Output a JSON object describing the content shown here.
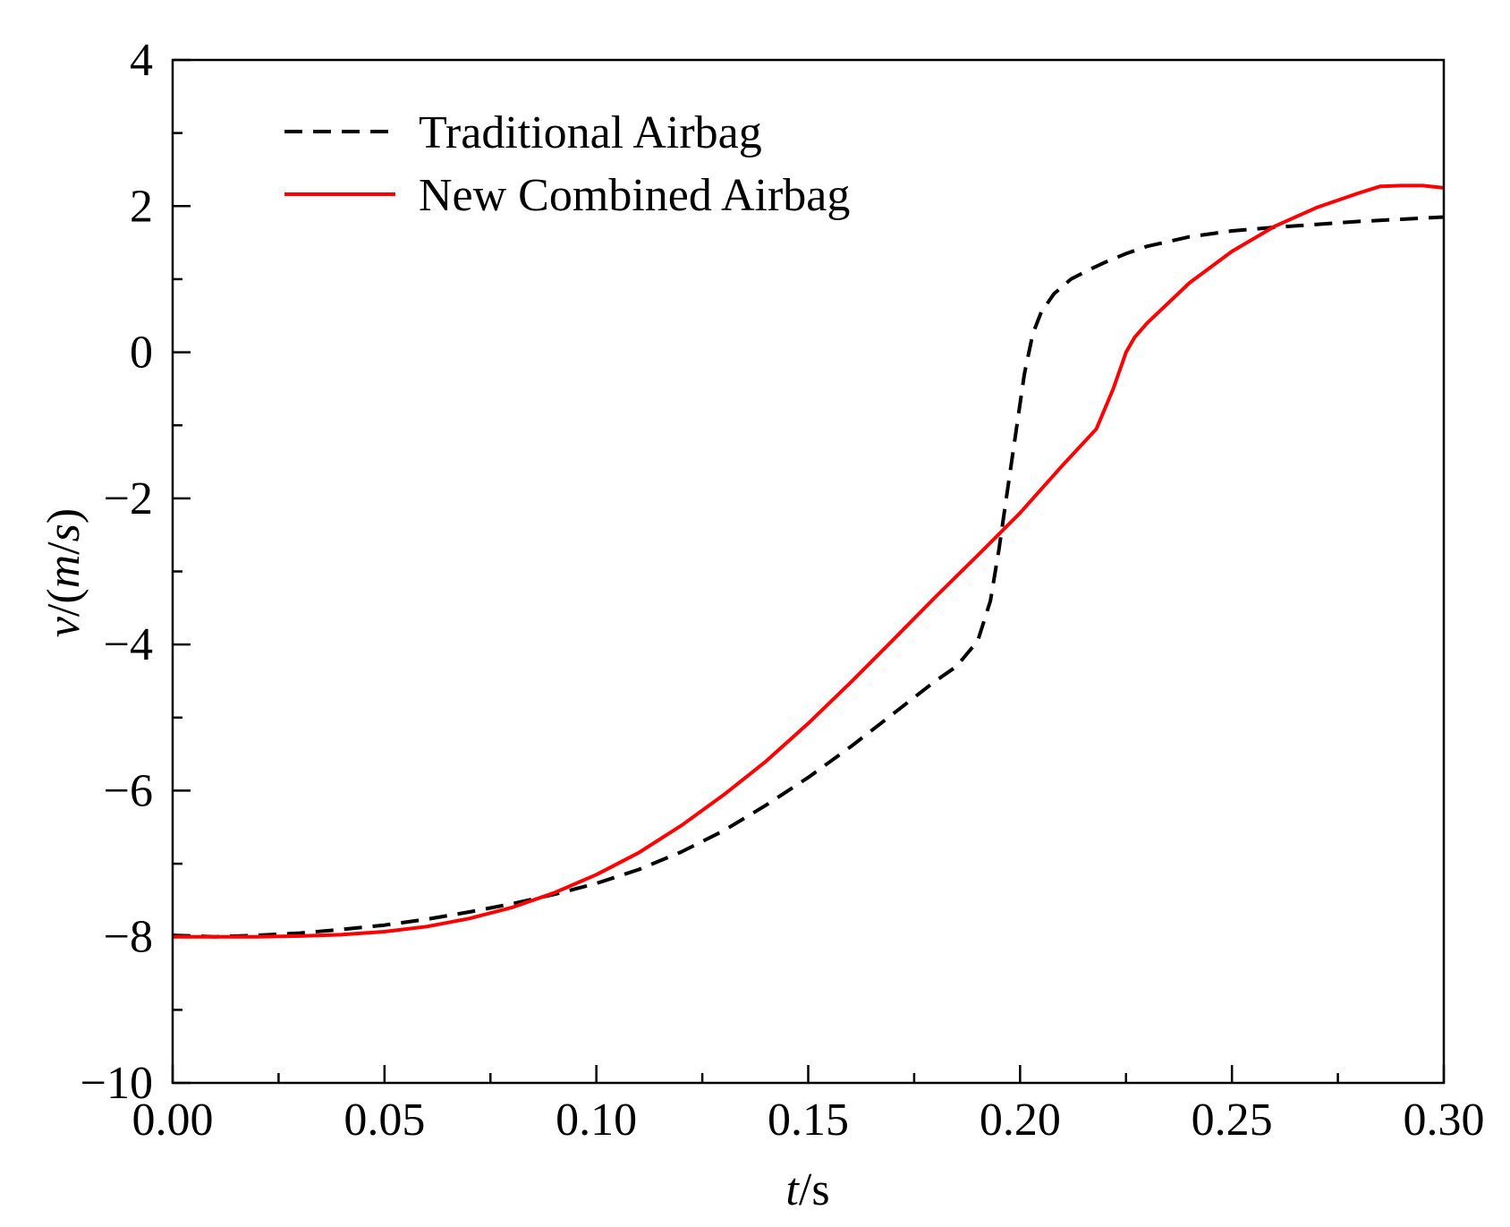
{
  "chart_data": {
    "type": "line",
    "title": "",
    "xlabel_italic": "t",
    "xlabel_rest": "/s",
    "ylabel_italic_v": "v",
    "ylabel_mid": "/(",
    "ylabel_italic_m": "m",
    "ylabel_slash": "/",
    "ylabel_italic_s": "s",
    "ylabel_close": ")",
    "xlim": [
      0.0,
      0.3
    ],
    "ylim": [
      -10,
      4
    ],
    "x_ticks": [
      0.0,
      0.05,
      0.1,
      0.15,
      0.2,
      0.25,
      0.3
    ],
    "x_tick_labels": [
      "0.00",
      "0.05",
      "0.10",
      "0.15",
      "0.20",
      "0.25",
      "0.30"
    ],
    "x_minor_step": 0.025,
    "y_ticks": [
      4,
      2,
      0,
      -2,
      -4,
      -6,
      -8,
      -10
    ],
    "y_tick_labels": [
      "4",
      "2",
      "0",
      "−2",
      "−4",
      "−6",
      "−8",
      "−10"
    ],
    "y_minor_step": 1,
    "grid": false,
    "legend_position": "top-left",
    "series": [
      {
        "name": "Traditional Airbag",
        "color": "#000000",
        "style": "dashed",
        "x": [
          0.0,
          0.01,
          0.02,
          0.03,
          0.04,
          0.05,
          0.06,
          0.07,
          0.08,
          0.09,
          0.1,
          0.11,
          0.12,
          0.13,
          0.14,
          0.15,
          0.16,
          0.17,
          0.18,
          0.185,
          0.19,
          0.193,
          0.195,
          0.197,
          0.199,
          0.201,
          0.203,
          0.205,
          0.208,
          0.212,
          0.216,
          0.22,
          0.225,
          0.23,
          0.24,
          0.25,
          0.26,
          0.27,
          0.28,
          0.29,
          0.3
        ],
        "y": [
          -7.98,
          -8.0,
          -7.98,
          -7.95,
          -7.9,
          -7.84,
          -7.76,
          -7.66,
          -7.55,
          -7.42,
          -7.27,
          -7.08,
          -6.84,
          -6.55,
          -6.2,
          -5.82,
          -5.4,
          -4.95,
          -4.5,
          -4.3,
          -3.95,
          -3.4,
          -2.7,
          -1.9,
          -1.1,
          -0.3,
          0.25,
          0.55,
          0.8,
          1.0,
          1.12,
          1.23,
          1.35,
          1.45,
          1.58,
          1.66,
          1.71,
          1.75,
          1.79,
          1.82,
          1.85
        ]
      },
      {
        "name": "New Combined Airbag",
        "color": "#ff0000",
        "style": "solid",
        "x": [
          0.0,
          0.01,
          0.02,
          0.03,
          0.04,
          0.05,
          0.06,
          0.07,
          0.08,
          0.09,
          0.1,
          0.11,
          0.12,
          0.13,
          0.14,
          0.15,
          0.16,
          0.17,
          0.18,
          0.19,
          0.2,
          0.21,
          0.218,
          0.222,
          0.225,
          0.227,
          0.23,
          0.24,
          0.25,
          0.26,
          0.27,
          0.28,
          0.285,
          0.29,
          0.295,
          0.3
        ],
        "y": [
          -8.0,
          -8.0,
          -8.0,
          -7.99,
          -7.97,
          -7.93,
          -7.86,
          -7.75,
          -7.6,
          -7.4,
          -7.15,
          -6.85,
          -6.48,
          -6.06,
          -5.6,
          -5.08,
          -4.52,
          -3.94,
          -3.35,
          -2.78,
          -2.2,
          -1.55,
          -1.05,
          -0.5,
          0.0,
          0.2,
          0.4,
          0.95,
          1.38,
          1.72,
          1.98,
          2.18,
          2.27,
          2.28,
          2.28,
          2.25
        ]
      }
    ]
  }
}
